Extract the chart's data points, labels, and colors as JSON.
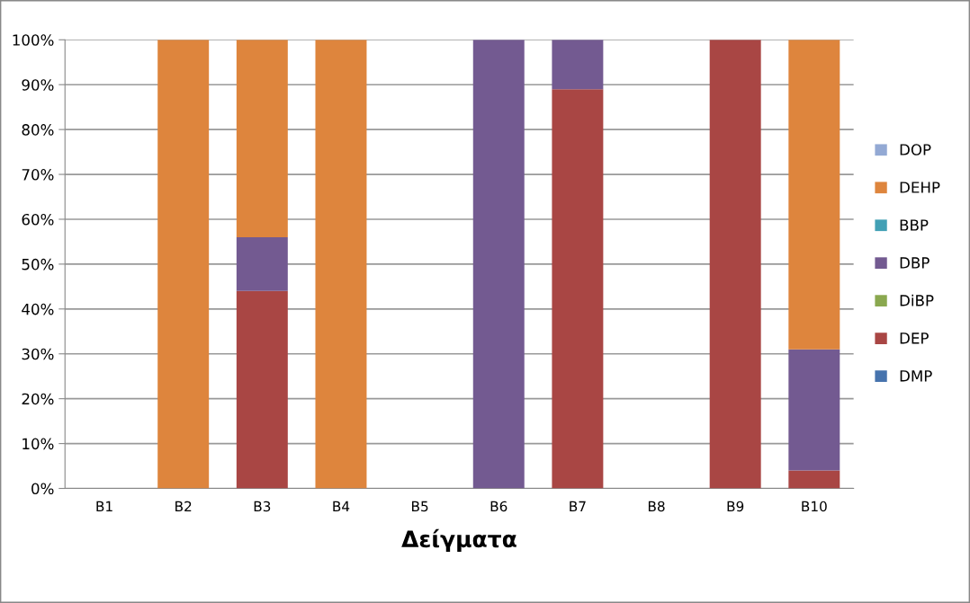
{
  "chart_data": {
    "type": "bar",
    "stacked": true,
    "xlabel": "Δείγματα",
    "categories": [
      "B1",
      "B2",
      "B3",
      "B4",
      "B5",
      "B6",
      "B7",
      "B8",
      "B9",
      "B10"
    ],
    "series": [
      {
        "name": "DMP",
        "color": "#4673ad",
        "values": [
          0,
          0,
          0,
          0,
          0,
          0,
          0,
          0,
          0,
          0
        ]
      },
      {
        "name": "DEP",
        "color": "#a94644",
        "values": [
          0,
          0,
          44,
          0,
          0,
          0,
          89,
          0,
          100,
          4
        ]
      },
      {
        "name": "DiBP",
        "color": "#8aa84f",
        "values": [
          0,
          0,
          0,
          0,
          0,
          0,
          0,
          0,
          0,
          0
        ]
      },
      {
        "name": "DBP",
        "color": "#735a91",
        "values": [
          0,
          0,
          12,
          0,
          0,
          100,
          11,
          0,
          0,
          27
        ]
      },
      {
        "name": "BBP",
        "color": "#42a0b5",
        "values": [
          0,
          0,
          0,
          0,
          0,
          0,
          0,
          0,
          0,
          0
        ]
      },
      {
        "name": "DEHP",
        "color": "#de853d",
        "values": [
          0,
          100,
          44,
          100,
          0,
          0,
          0,
          0,
          0,
          69
        ]
      },
      {
        "name": "DOP",
        "color": "#93a9d4",
        "values": [
          0,
          0,
          0,
          0,
          0,
          0,
          0,
          0,
          0,
          0
        ]
      }
    ],
    "ylim": [
      0,
      100
    ],
    "yticks": [
      {
        "value": 0,
        "label": "0%"
      },
      {
        "value": 10,
        "label": "10%"
      },
      {
        "value": 20,
        "label": "20%"
      },
      {
        "value": 30,
        "label": "30%"
      },
      {
        "value": 40,
        "label": "40%"
      },
      {
        "value": 50,
        "label": "50%"
      },
      {
        "value": 60,
        "label": "60%"
      },
      {
        "value": 70,
        "label": "70%"
      },
      {
        "value": 80,
        "label": "80%"
      },
      {
        "value": 90,
        "label": "90%"
      },
      {
        "value": 100,
        "label": "100%"
      }
    ],
    "grid": "y",
    "legend": "right"
  }
}
